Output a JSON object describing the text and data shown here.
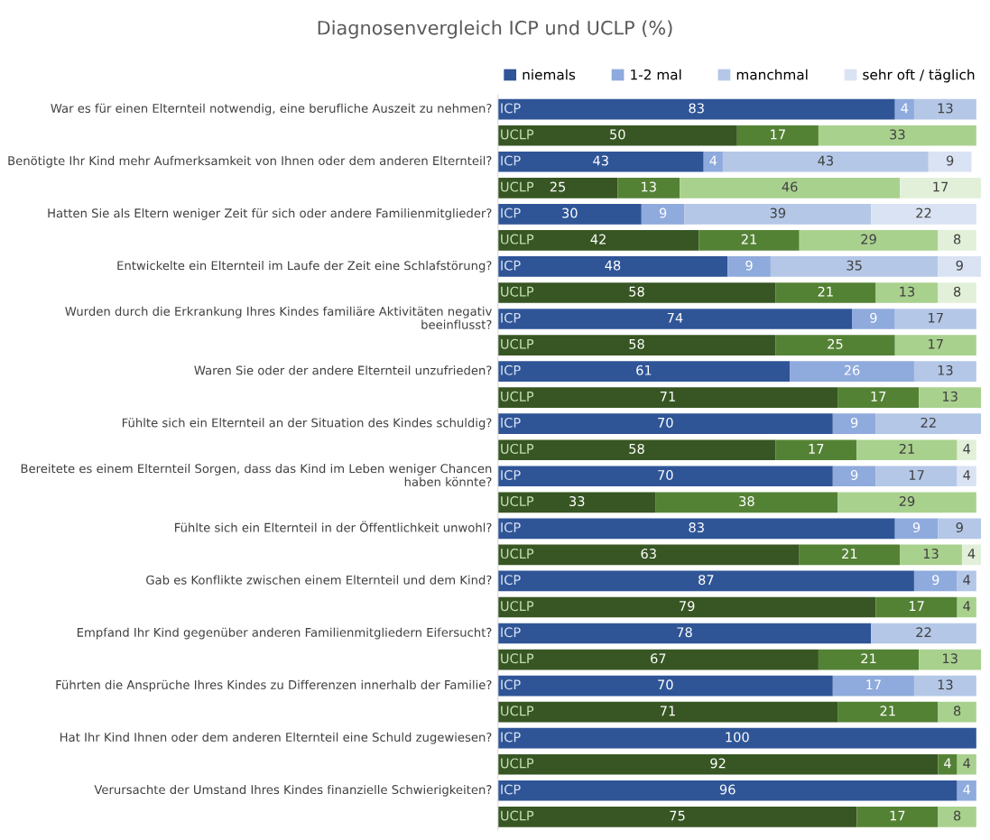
{
  "chart_data": {
    "type": "bar",
    "orientation": "horizontal",
    "stacked": true,
    "title": "Diagnosenvergleich ICP und UCLP (%)",
    "categories": [
      "War es für einen Elternteil notwendig, eine berufliche Auszeit zu nehmen?",
      null,
      "Benötigte Ihr Kind mehr Aufmerksamkeit von Ihnen oder dem anderen Elternteil?",
      null,
      "Hatten Sie als Eltern weniger Zeit für sich oder andere Familienmitglieder?",
      null,
      "Entwickelte ein Elternteil im Laufe der Zeit eine Schlafstörung?",
      null,
      "Wurden durch die Erkrankung Ihres Kindes familiäre Aktivitäten negativ beeinflusst?",
      null,
      "Waren Sie oder der andere Elternteil unzufrieden?",
      null,
      "Fühlte sich ein Elternteil an der Situation des Kindes schuldig?",
      null,
      "Bereitete es einem Elternteil Sorgen, dass das Kind im Leben weniger Chancen haben könnte?",
      null,
      "Fühlte sich ein Elternteil in der Öffentlichkeit unwohl?",
      null,
      "Gab es Konflikte zwischen einem Elternteil und dem Kind?",
      null,
      "Empfand Ihr Kind gegenüber anderen Familienmitgliedern Eifersucht?",
      null,
      "Führten die Ansprüche Ihres Kindes zu Differenzen innerhalb der Familie?",
      null,
      "Hat Ihr Kind Ihnen oder dem anderen Elternteil eine Schuld zugewiesen?",
      null,
      "Verursachte der Umstand Ihres Kindes finanzielle Schwierigkeiten?",
      null
    ],
    "annotations": [
      "ICP",
      "UCLP",
      "ICP",
      "UCLP",
      "ICP",
      "UCLP",
      "ICP",
      "UCLP",
      "ICP",
      "UCLP",
      "ICP",
      "UCLP",
      "ICP",
      "UCLP",
      "ICP",
      "UCLP",
      "ICP",
      "UCLP",
      "ICP",
      "UCLP",
      "ICP",
      "UCLP",
      "ICP",
      "UCLP",
      "ICP",
      "UCLP",
      "ICP",
      "UCLP"
    ],
    "xlim": [
      0,
      101
    ],
    "tick_labels": "y",
    "legend": "top",
    "data_labels": true,
    "series": [
      {
        "name": "niemals",
        "colors": [
          "#2f5597",
          "#375623",
          "#2f5597",
          "#375623",
          "#2f5597",
          "#375623",
          "#2f5597",
          "#375623",
          "#2f5597",
          "#375623",
          "#2f5597",
          "#375623",
          "#2f5597",
          "#375623",
          "#2f5597",
          "#375623",
          "#2f5597",
          "#375623",
          "#2f5597",
          "#375623",
          "#2f5597",
          "#375623",
          "#2f5597",
          "#375623",
          "#2f5597",
          "#375623",
          "#2f5597",
          "#375623"
        ],
        "values": [
          83,
          50,
          43,
          25,
          30,
          42,
          48,
          58,
          74,
          58,
          61,
          71,
          70,
          58,
          70,
          33,
          83,
          63,
          87,
          79,
          78,
          67,
          70,
          71,
          100,
          92,
          96,
          75
        ]
      },
      {
        "name": "1-2 mal",
        "colors": [
          "#8faadc",
          "#548235",
          "#8faadc",
          "#548235",
          "#8faadc",
          "#548235",
          "#8faadc",
          "#548235",
          "#8faadc",
          "#548235",
          "#8faadc",
          "#548235",
          "#8faadc",
          "#548235",
          "#8faadc",
          "#548235",
          "#8faadc",
          "#548235",
          "#8faadc",
          "#548235",
          "#8faadc",
          "#548235",
          "#8faadc",
          "#548235",
          "#8faadc",
          "#548235",
          "#8faadc",
          "#548235"
        ],
        "values": [
          4,
          17,
          4,
          13,
          9,
          21,
          9,
          21,
          9,
          25,
          26,
          17,
          9,
          17,
          9,
          38,
          9,
          21,
          9,
          17,
          null,
          21,
          17,
          21,
          null,
          4,
          4,
          17
        ]
      },
      {
        "name": "manchmal",
        "colors": [
          "#b4c7e7",
          "#a9d18e",
          "#b4c7e7",
          "#a9d18e",
          "#b4c7e7",
          "#a9d18e",
          "#b4c7e7",
          "#a9d18e",
          "#b4c7e7",
          "#a9d18e",
          "#b4c7e7",
          "#a9d18e",
          "#b4c7e7",
          "#a9d18e",
          "#b4c7e7",
          "#a9d18e",
          "#b4c7e7",
          "#a9d18e",
          "#b4c7e7",
          "#a9d18e",
          "#b4c7e7",
          "#a9d18e",
          "#b4c7e7",
          "#a9d18e",
          "#b4c7e7",
          "#a9d18e",
          "#b4c7e7",
          "#a9d18e"
        ],
        "values": [
          13,
          33,
          43,
          46,
          39,
          29,
          35,
          13,
          17,
          17,
          13,
          13,
          22,
          21,
          17,
          29,
          9,
          13,
          4,
          4,
          22,
          13,
          13,
          8,
          null,
          4,
          null,
          8
        ]
      },
      {
        "name": "sehr oft / täglich",
        "colors": [
          "#dae3f3",
          "#e2f0d9",
          "#dae3f3",
          "#e2f0d9",
          "#dae3f3",
          "#e2f0d9",
          "#dae3f3",
          "#e2f0d9",
          "#dae3f3",
          "#e2f0d9",
          "#dae3f3",
          "#e2f0d9",
          "#dae3f3",
          "#e2f0d9",
          "#dae3f3",
          "#e2f0d9",
          "#dae3f3",
          "#e2f0d9",
          "#dae3f3",
          "#e2f0d9",
          "#dae3f3",
          "#e2f0d9",
          "#dae3f3",
          "#e2f0d9",
          "#dae3f3",
          "#e2f0d9",
          "#dae3f3",
          "#e2f0d9"
        ],
        "values": [
          null,
          null,
          9,
          17,
          22,
          8,
          9,
          8,
          null,
          null,
          null,
          null,
          null,
          4,
          4,
          null,
          null,
          4,
          null,
          null,
          null,
          null,
          null,
          null,
          null,
          null,
          null,
          null
        ]
      }
    ]
  }
}
